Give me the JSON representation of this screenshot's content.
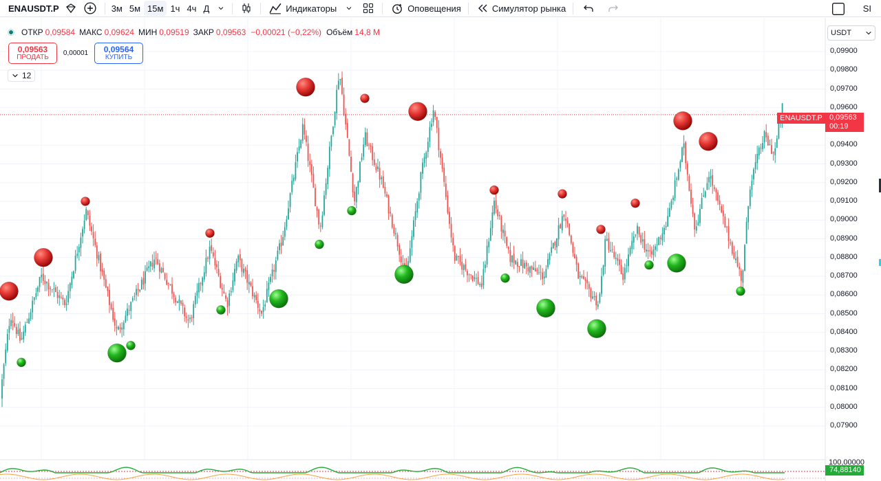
{
  "toolbar": {
    "symbol": "ENAUSDT.P",
    "intervals": [
      "3м",
      "5м",
      "15м",
      "1ч",
      "4ч",
      "Д"
    ],
    "active_interval": "15м",
    "indicators_label": "Индикаторы",
    "alerts_label": "Оповещения",
    "replay_label": "Симулятор рынка",
    "user_initials": "SI"
  },
  "legend": {
    "open_key": "ОТКР",
    "open_val": "0,09584",
    "high_key": "МАКС",
    "high_val": "0,09624",
    "low_key": "МИН",
    "low_val": "0,09519",
    "close_key": "ЗАКР",
    "close_val": "0,09563",
    "change": "−0,00021 (−0,22%)",
    "volume_key": "Объём",
    "volume_val": "14,8 M"
  },
  "trade": {
    "sell_price": "0,09563",
    "sell_label": "ПРОДАТЬ",
    "spread": "0,00001",
    "buy_price": "0,09564",
    "buy_label": "КУПИТЬ"
  },
  "indicators_collapsed_count": "12",
  "price_scale": {
    "currency": "USDT",
    "ticks": [
      "0,09900",
      "0,09800",
      "0,09700",
      "0,09600",
      "0,09400",
      "0,09300",
      "0,09200",
      "0,09100",
      "0,09000",
      "0,08900",
      "0,08800",
      "0,08700",
      "0,08600",
      "0,08500",
      "0,08400",
      "0,08300",
      "0,08200",
      "0,08100",
      "0,08000",
      "0,07900"
    ],
    "last_price_label": "0,09563",
    "countdown": "00:19",
    "symbol_tag": "ENAUSDT.P"
  },
  "oscillator": {
    "top_label": "100,00000",
    "value_label": "74,88140"
  },
  "colors": {
    "up": "#26a69a",
    "down": "#ef5350",
    "sell_marker": "#e53935",
    "buy_marker": "#22b51f",
    "accent": "#2962ff"
  },
  "chart_data": {
    "type": "candlestick",
    "symbol": "ENAUSDT.P",
    "timeframe": "15м",
    "ylim": [
      0.0785,
      0.0995
    ],
    "last_price": 0.09563,
    "swing_path": [
      [
        0,
        0.0805
      ],
      [
        15,
        0.085
      ],
      [
        30,
        0.0835
      ],
      [
        60,
        0.087
      ],
      [
        95,
        0.0855
      ],
      [
        125,
        0.0905
      ],
      [
        170,
        0.084
      ],
      [
        225,
        0.088
      ],
      [
        275,
        0.0845
      ],
      [
        305,
        0.0885
      ],
      [
        330,
        0.0855
      ],
      [
        345,
        0.088
      ],
      [
        380,
        0.085
      ],
      [
        410,
        0.089
      ],
      [
        440,
        0.095
      ],
      [
        465,
        0.0895
      ],
      [
        493,
        0.098
      ],
      [
        515,
        0.091
      ],
      [
        530,
        0.0945
      ],
      [
        555,
        0.092
      ],
      [
        590,
        0.087
      ],
      [
        610,
        0.092
      ],
      [
        630,
        0.096
      ],
      [
        660,
        0.088
      ],
      [
        700,
        0.0865
      ],
      [
        718,
        0.091
      ],
      [
        740,
        0.088
      ],
      [
        790,
        0.087
      ],
      [
        820,
        0.0905
      ],
      [
        840,
        0.087
      ],
      [
        870,
        0.0855
      ],
      [
        880,
        0.089
      ],
      [
        905,
        0.087
      ],
      [
        925,
        0.0895
      ],
      [
        945,
        0.088
      ],
      [
        970,
        0.09
      ],
      [
        993,
        0.094
      ],
      [
        1010,
        0.0895
      ],
      [
        1030,
        0.0925
      ],
      [
        1055,
        0.0895
      ],
      [
        1078,
        0.0868
      ],
      [
        1090,
        0.092
      ],
      [
        1110,
        0.0945
      ],
      [
        1125,
        0.0935
      ],
      [
        1138,
        0.0963
      ]
    ],
    "sell_markers": [
      {
        "x": 13,
        "price": 0.0862,
        "size": "large"
      },
      {
        "x": 63,
        "price": 0.088,
        "size": "large"
      },
      {
        "x": 124,
        "price": 0.091,
        "size": "small"
      },
      {
        "x": 305,
        "price": 0.0893,
        "size": "small"
      },
      {
        "x": 444,
        "price": 0.0971,
        "size": "large"
      },
      {
        "x": 530,
        "price": 0.0965,
        "size": "small"
      },
      {
        "x": 607,
        "price": 0.0958,
        "size": "large"
      },
      {
        "x": 718,
        "price": 0.0916,
        "size": "small"
      },
      {
        "x": 817,
        "price": 0.0914,
        "size": "small"
      },
      {
        "x": 873,
        "price": 0.0895,
        "size": "small"
      },
      {
        "x": 923,
        "price": 0.0909,
        "size": "small"
      },
      {
        "x": 992,
        "price": 0.0953,
        "size": "large"
      },
      {
        "x": 1029,
        "price": 0.0942,
        "size": "large"
      }
    ],
    "buy_markers": [
      {
        "x": 31,
        "price": 0.0824,
        "size": "small"
      },
      {
        "x": 170,
        "price": 0.0829,
        "size": "large"
      },
      {
        "x": 190,
        "price": 0.0833,
        "size": "small"
      },
      {
        "x": 321,
        "price": 0.0852,
        "size": "small"
      },
      {
        "x": 405,
        "price": 0.0858,
        "size": "large"
      },
      {
        "x": 464,
        "price": 0.0887,
        "size": "small"
      },
      {
        "x": 511,
        "price": 0.0905,
        "size": "small"
      },
      {
        "x": 587,
        "price": 0.0871,
        "size": "large"
      },
      {
        "x": 734,
        "price": 0.0869,
        "size": "small"
      },
      {
        "x": 793,
        "price": 0.0853,
        "size": "large"
      },
      {
        "x": 867,
        "price": 0.0842,
        "size": "large"
      },
      {
        "x": 943,
        "price": 0.0876,
        "size": "small"
      },
      {
        "x": 983,
        "price": 0.0877,
        "size": "large"
      },
      {
        "x": 1076,
        "price": 0.0862,
        "size": "small"
      }
    ]
  }
}
